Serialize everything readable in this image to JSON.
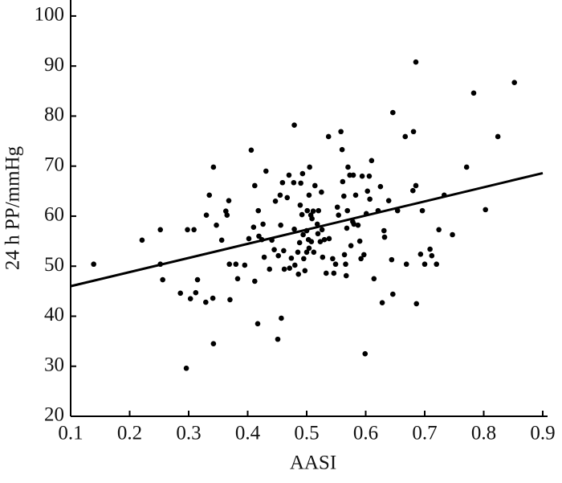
{
  "chart_data": {
    "type": "scatter",
    "xlabel": "AASI",
    "ylabel": "24 h PP/mmHg",
    "color": "#000000",
    "xlim": [
      0.1,
      0.9
    ],
    "ylim": [
      20,
      103.2
    ],
    "xticks": [
      0.1,
      0.2,
      0.3,
      0.4,
      0.5,
      0.6,
      0.7,
      0.8,
      0.9
    ],
    "yticks": [
      20,
      30,
      40,
      50,
      60,
      70,
      80,
      90,
      100
    ],
    "fit": {
      "x": [
        0.1,
        0.9
      ],
      "y": [
        46,
        68.6
      ]
    },
    "series": [
      {
        "x": [
          0.139,
          0.221,
          0.252,
          0.252,
          0.256,
          0.286,
          0.296,
          0.298,
          0.303,
          0.309,
          0.312,
          0.315,
          0.329,
          0.33,
          0.335,
          0.341,
          0.342,
          0.342,
          0.347,
          0.356,
          0.363,
          0.365,
          0.368,
          0.369,
          0.37,
          0.38,
          0.383,
          0.395,
          0.402,
          0.406,
          0.41,
          0.412,
          0.412,
          0.417,
          0.418,
          0.419,
          0.424,
          0.426,
          0.428,
          0.431,
          0.437,
          0.441,
          0.445,
          0.447,
          0.451,
          0.452,
          0.455,
          0.456,
          0.457,
          0.459,
          0.461,
          0.462,
          0.467,
          0.47,
          0.471,
          0.474,
          0.478,
          0.479,
          0.479,
          0.48,
          0.485,
          0.486,
          0.488,
          0.489,
          0.49,
          0.492,
          0.493,
          0.494,
          0.495,
          0.497,
          0.5,
          0.5,
          0.501,
          0.503,
          0.504,
          0.504,
          0.505,
          0.507,
          0.508,
          0.509,
          0.511,
          0.512,
          0.514,
          0.518,
          0.519,
          0.52,
          0.523,
          0.525,
          0.526,
          0.527,
          0.53,
          0.533,
          0.537,
          0.538,
          0.544,
          0.546,
          0.549,
          0.552,
          0.554,
          0.558,
          0.56,
          0.561,
          0.563,
          0.564,
          0.566,
          0.567,
          0.568,
          0.569,
          0.57,
          0.573,
          0.575,
          0.578,
          0.579,
          0.58,
          0.583,
          0.587,
          0.59,
          0.592,
          0.594,
          0.597,
          0.599,
          0.601,
          0.603,
          0.606,
          0.607,
          0.61,
          0.614,
          0.621,
          0.625,
          0.628,
          0.631,
          0.632,
          0.639,
          0.644,
          0.646,
          0.646,
          0.654,
          0.667,
          0.669,
          0.68,
          0.681,
          0.685,
          0.685,
          0.686,
          0.693,
          0.696,
          0.7,
          0.709,
          0.712,
          0.72,
          0.724,
          0.733,
          0.747,
          0.771,
          0.783,
          0.803,
          0.824,
          0.852
        ],
        "y": [
          50.4,
          55.2,
          57.3,
          50.4,
          47.3,
          44.6,
          29.6,
          57.3,
          43.5,
          57.3,
          44.7,
          47.3,
          42.8,
          60.2,
          64.2,
          43.6,
          69.8,
          34.5,
          58.2,
          55.2,
          61,
          60.2,
          63.1,
          50.4,
          43.3,
          50.4,
          47.5,
          50.2,
          55.5,
          73.2,
          57.8,
          66.1,
          47,
          38.5,
          61.1,
          56,
          55.3,
          58.4,
          51.8,
          69,
          49.4,
          55.2,
          53.3,
          63,
          35.4,
          52.1,
          64.2,
          58.2,
          39.6,
          66.7,
          53.1,
          49.4,
          63.7,
          68.2,
          49.6,
          51.6,
          66.7,
          78.2,
          57.4,
          50.2,
          52.8,
          48.4,
          54.7,
          62.2,
          66.6,
          60.3,
          68.5,
          56.3,
          51.5,
          49.1,
          52.8,
          57.1,
          61.1,
          55.3,
          53.6,
          64.2,
          69.8,
          60.2,
          54.9,
          59.5,
          61,
          52.8,
          66.1,
          58.4,
          56.5,
          61.1,
          54.9,
          64.8,
          57.3,
          51.8,
          55.3,
          48.6,
          75.9,
          55.5,
          51.5,
          48.6,
          50.4,
          61.8,
          60.2,
          76.9,
          73.3,
          66.9,
          64,
          52.3,
          50.4,
          48.1,
          57.6,
          61.1,
          69.8,
          68.2,
          54.1,
          58.9,
          68.2,
          58.4,
          64.2,
          58.2,
          55,
          51.5,
          68,
          52.3,
          32.5,
          60.5,
          65,
          68,
          63.4,
          71.1,
          47.5,
          61.1,
          65.9,
          42.7,
          57.1,
          55.8,
          63.1,
          51.3,
          80.7,
          44.4,
          61.1,
          75.9,
          50.4,
          65.1,
          76.9,
          66.1,
          90.8,
          42.5,
          52.4,
          61.1,
          50.4,
          53.4,
          52.1,
          50.4,
          57.3,
          64.2,
          56.3,
          69.8,
          84.6,
          61.3,
          75.9,
          86.7
        ]
      }
    ]
  }
}
